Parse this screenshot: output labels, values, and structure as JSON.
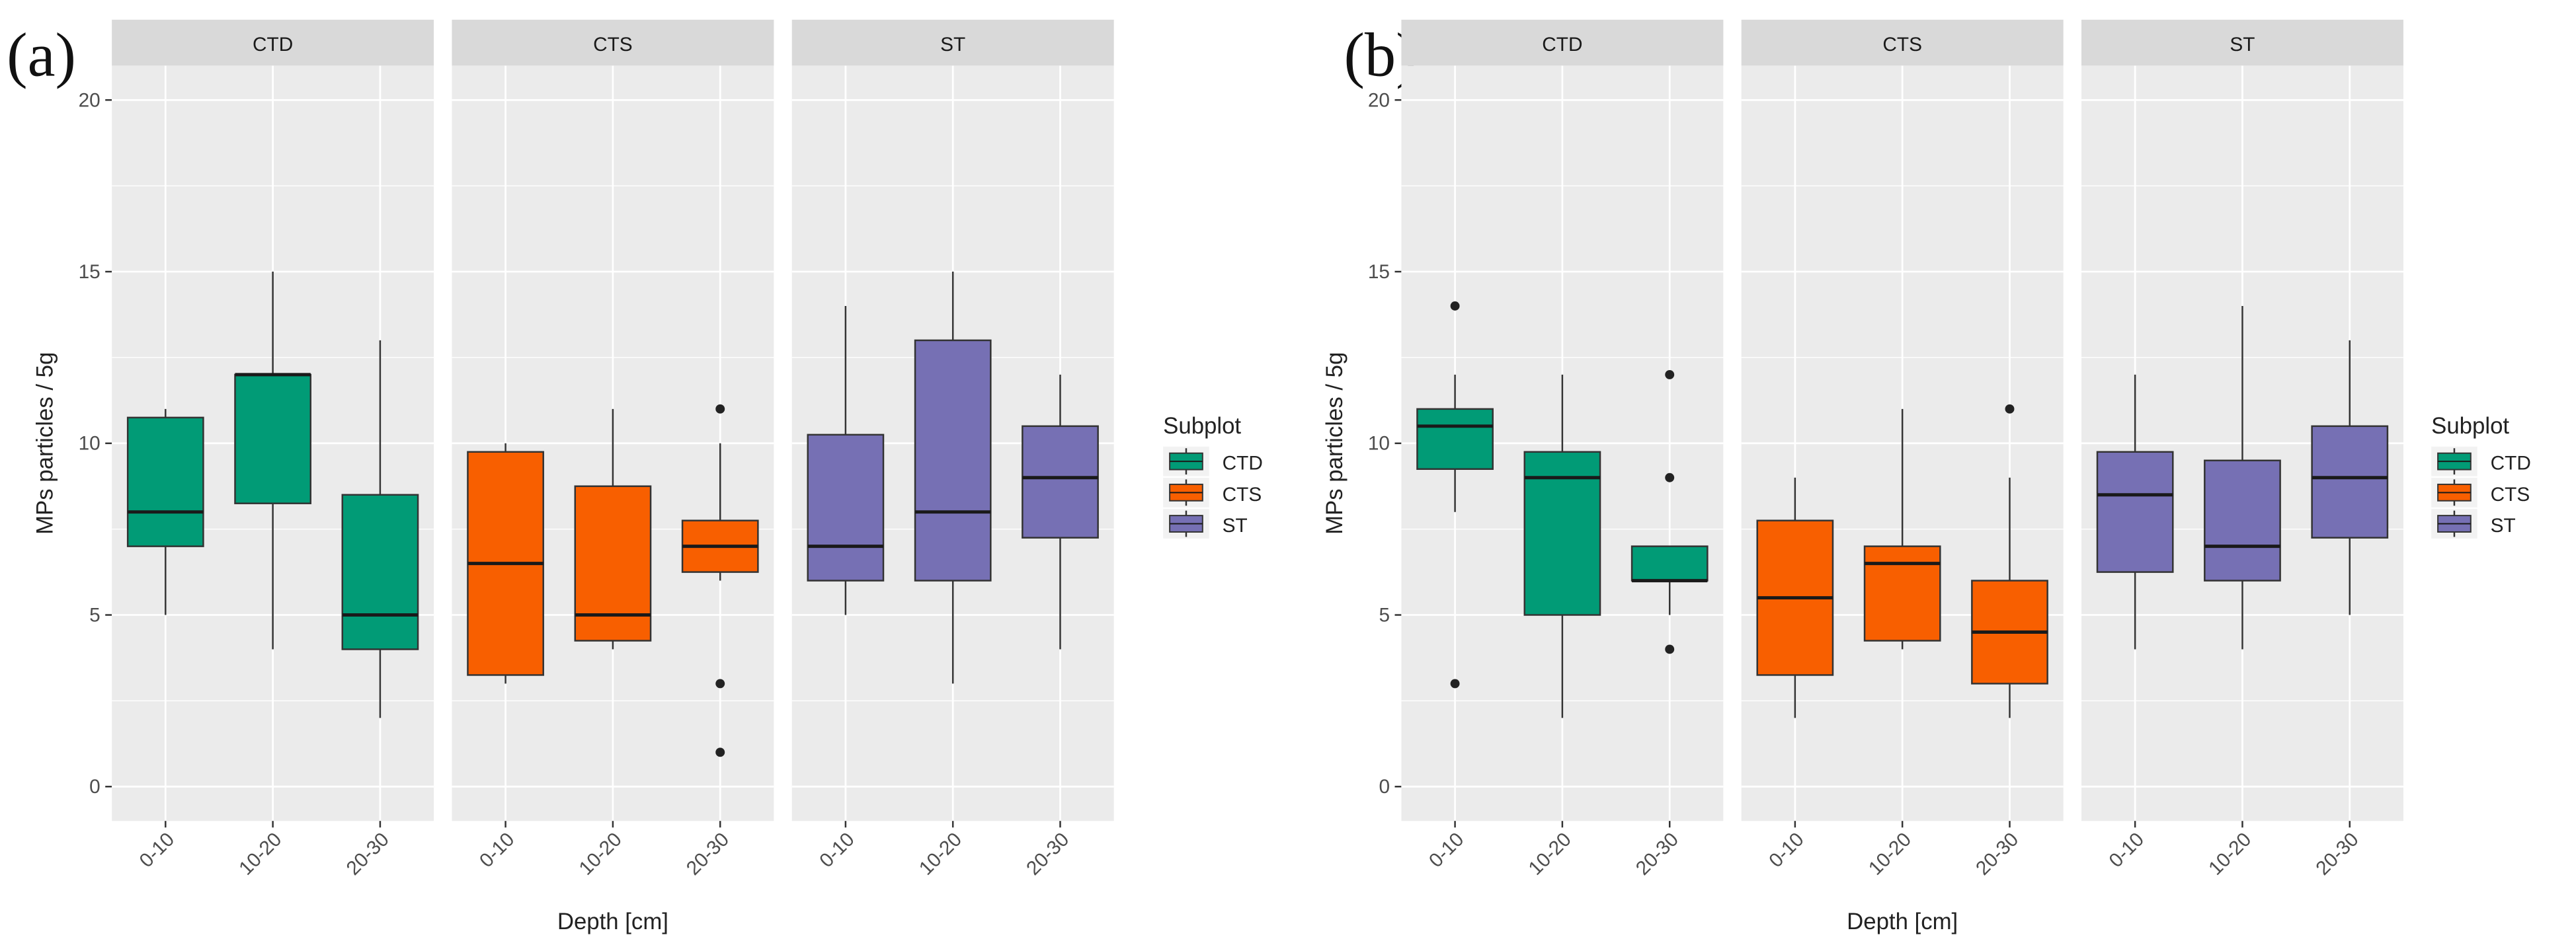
{
  "chart_data": [
    {
      "type": "boxplot",
      "panel_label": "(a)",
      "ylabel": "MPs particles / 5g",
      "xlabel": "Depth [cm]",
      "ylim": [
        -1,
        21
      ],
      "yticks": [
        0,
        5,
        10,
        15,
        20
      ],
      "ytick_labels": [
        "0",
        "5",
        "10",
        "15",
        "20"
      ],
      "categories": [
        "0-10",
        "10-20",
        "20-30"
      ],
      "legend": {
        "title": "Subplot",
        "entries": [
          "CTD",
          "CTS",
          "ST"
        ],
        "placement": "right"
      },
      "facets": [
        {
          "name": "CTD",
          "color": "#019b76",
          "boxes": [
            {
              "lower_whisker": 5,
              "q1": 7,
              "median": 8,
              "q3": 10.75,
              "upper_whisker": 11,
              "outliers": []
            },
            {
              "lower_whisker": 4,
              "q1": 8.25,
              "median": 12,
              "q3": 12,
              "upper_whisker": 15,
              "outliers": []
            },
            {
              "lower_whisker": 2,
              "q1": 4,
              "median": 5,
              "q3": 8.5,
              "upper_whisker": 13,
              "outliers": []
            }
          ]
        },
        {
          "name": "CTS",
          "color": "#f85f00",
          "boxes": [
            {
              "lower_whisker": 3,
              "q1": 3.25,
              "median": 6.5,
              "q3": 9.75,
              "upper_whisker": 10,
              "outliers": []
            },
            {
              "lower_whisker": 4,
              "q1": 4.25,
              "median": 5,
              "q3": 8.75,
              "upper_whisker": 11,
              "outliers": []
            },
            {
              "lower_whisker": 6,
              "q1": 6.25,
              "median": 7,
              "q3": 7.75,
              "upper_whisker": 10,
              "outliers": [
                11,
                3,
                1
              ]
            }
          ]
        },
        {
          "name": "ST",
          "color": "#7670b4",
          "boxes": [
            {
              "lower_whisker": 5,
              "q1": 6,
              "median": 7,
              "q3": 10.25,
              "upper_whisker": 14,
              "outliers": []
            },
            {
              "lower_whisker": 3,
              "q1": 6,
              "median": 8,
              "q3": 13,
              "upper_whisker": 15,
              "outliers": []
            },
            {
              "lower_whisker": 4,
              "q1": 7.25,
              "median": 9,
              "q3": 10.5,
              "upper_whisker": 12,
              "outliers": []
            }
          ]
        }
      ]
    },
    {
      "type": "boxplot",
      "panel_label": "(b)",
      "ylabel": "MPs particles / 5g",
      "xlabel": "Depth [cm]",
      "ylim": [
        -1,
        21
      ],
      "yticks": [
        0,
        5,
        10,
        15,
        20
      ],
      "ytick_labels": [
        "0",
        "5",
        "10",
        "15",
        "20"
      ],
      "categories": [
        "0-10",
        "10-20",
        "20-30"
      ],
      "legend": {
        "title": "Subplot",
        "entries": [
          "CTD",
          "CTS",
          "ST"
        ],
        "placement": "right"
      },
      "facets": [
        {
          "name": "CTD",
          "color": "#019b76",
          "boxes": [
            {
              "lower_whisker": 8,
              "q1": 9.25,
              "median": 10.5,
              "q3": 11,
              "upper_whisker": 12,
              "outliers": [
                14,
                3
              ]
            },
            {
              "lower_whisker": 2,
              "q1": 5,
              "median": 9,
              "q3": 9.75,
              "upper_whisker": 12,
              "outliers": []
            },
            {
              "lower_whisker": 5,
              "q1": 6,
              "median": 6,
              "q3": 7,
              "upper_whisker": 7,
              "outliers": [
                12,
                9,
                4
              ]
            }
          ]
        },
        {
          "name": "CTS",
          "color": "#f85f00",
          "boxes": [
            {
              "lower_whisker": 2,
              "q1": 3.25,
              "median": 5.5,
              "q3": 7.75,
              "upper_whisker": 9,
              "outliers": []
            },
            {
              "lower_whisker": 4,
              "q1": 4.25,
              "median": 6.5,
              "q3": 7,
              "upper_whisker": 11,
              "outliers": []
            },
            {
              "lower_whisker": 2,
              "q1": 3,
              "median": 4.5,
              "q3": 6,
              "upper_whisker": 9,
              "outliers": [
                11
              ]
            }
          ]
        },
        {
          "name": "ST",
          "color": "#7670b4",
          "boxes": [
            {
              "lower_whisker": 4,
              "q1": 6.25,
              "median": 8.5,
              "q3": 9.75,
              "upper_whisker": 12,
              "outliers": []
            },
            {
              "lower_whisker": 4,
              "q1": 6,
              "median": 7,
              "q3": 9.5,
              "upper_whisker": 14,
              "outliers": []
            },
            {
              "lower_whisker": 5,
              "q1": 7.25,
              "median": 9,
              "q3": 10.5,
              "upper_whisker": 13,
              "outliers": []
            }
          ]
        }
      ]
    }
  ]
}
